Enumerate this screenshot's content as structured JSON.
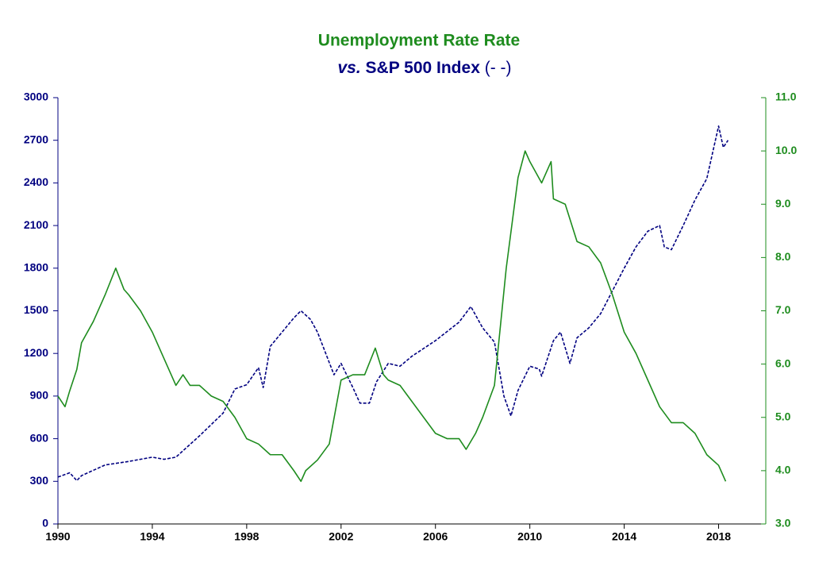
{
  "chart_data": {
    "type": "line",
    "title": "Unemployment Rate Rate",
    "subtitle": [
      "vs.",
      "S&P 500 Index",
      "(- -)"
    ],
    "xlim": [
      1990,
      2020
    ],
    "xticks": [
      1990,
      1994,
      1998,
      2002,
      2006,
      2010,
      2014,
      2018
    ],
    "ylim": [
      0,
      3000
    ],
    "yticks": [
      0,
      300,
      600,
      900,
      1200,
      1500,
      1800,
      2100,
      2400,
      2700,
      3000
    ],
    "y2lim": [
      3,
      11
    ],
    "y2ticks": [
      {
        "value": 3,
        "label": "3.0"
      },
      {
        "value": 4,
        "label": "4.0"
      },
      {
        "value": 5,
        "label": "5.0"
      },
      {
        "value": 6,
        "label": "6.0"
      },
      {
        "value": 7,
        "label": "7.0"
      },
      {
        "value": 8,
        "label": "8.0"
      },
      {
        "value": 9,
        "label": "9.0"
      },
      {
        "value": 10,
        "label": "10.0"
      },
      {
        "value": 11,
        "label": "11.0"
      }
    ],
    "series": [
      {
        "color": "#000080",
        "dashed": true,
        "axis": "y",
        "x": [
          1990.0,
          1990.5,
          1990.8,
          1991.0,
          1992.0,
          1993.0,
          1994.0,
          1994.5,
          1995.0,
          1996.0,
          1997.0,
          1997.5,
          1998.0,
          1998.5,
          1998.7,
          1999.0,
          1999.5,
          2000.0,
          2000.3,
          2000.7,
          2001.0,
          2001.7,
          2002.0,
          2002.5,
          2002.8,
          2003.2,
          2003.5,
          2004.0,
          2004.5,
          2005.0,
          2006.0,
          2007.0,
          2007.5,
          2008.0,
          2008.5,
          2008.9,
          2009.2,
          2009.5,
          2010.0,
          2010.4,
          2010.5,
          2011.0,
          2011.3,
          2011.7,
          2012.0,
          2012.5,
          2013.0,
          2013.5,
          2014.0,
          2014.5,
          2015.0,
          2015.5,
          2015.7,
          2016.0,
          2016.5,
          2017.0,
          2017.5,
          2018.0,
          2018.2,
          2018.4
        ],
        "values": [
          330,
          360,
          305,
          340,
          415,
          440,
          470,
          455,
          470,
          620,
          780,
          950,
          980,
          1100,
          960,
          1250,
          1350,
          1450,
          1500,
          1440,
          1350,
          1050,
          1130,
          960,
          850,
          850,
          1000,
          1130,
          1110,
          1180,
          1290,
          1420,
          1530,
          1380,
          1280,
          900,
          760,
          940,
          1110,
          1090,
          1040,
          1290,
          1350,
          1130,
          1310,
          1380,
          1480,
          1640,
          1800,
          1950,
          2060,
          2100,
          1950,
          1930,
          2100,
          2280,
          2430,
          2800,
          2650,
          2700
        ]
      },
      {
        "color": "#1e8c1e",
        "dashed": false,
        "axis": "y2",
        "x": [
          1990.0,
          1990.3,
          1990.5,
          1990.8,
          1991.0,
          1991.5,
          1992.0,
          1992.45,
          1992.8,
          1993.0,
          1993.5,
          1994.0,
          1994.5,
          1995.0,
          1995.3,
          1995.6,
          1996.0,
          1996.5,
          1997.0,
          1997.5,
          1998.0,
          1998.5,
          1999.0,
          1999.5,
          2000.0,
          2000.3,
          2000.5,
          2001.0,
          2001.5,
          2002.0,
          2002.5,
          2003.0,
          2003.45,
          2003.8,
          2004.0,
          2004.5,
          2005.0,
          2005.5,
          2006.0,
          2006.5,
          2007.0,
          2007.3,
          2007.7,
          2008.0,
          2008.5,
          2009.0,
          2009.5,
          2009.8,
          2010.0,
          2010.5,
          2010.9,
          2011.0,
          2011.5,
          2012.0,
          2012.5,
          2013.0,
          2013.5,
          2014.0,
          2014.5,
          2015.0,
          2015.5,
          2016.0,
          2016.5,
          2017.0,
          2017.5,
          2018.0,
          2018.3
        ],
        "values": [
          5.4,
          5.2,
          5.5,
          5.9,
          6.4,
          6.8,
          7.3,
          7.8,
          7.4,
          7.3,
          7.0,
          6.6,
          6.1,
          5.6,
          5.8,
          5.6,
          5.6,
          5.4,
          5.3,
          5.0,
          4.6,
          4.5,
          4.3,
          4.3,
          4.0,
          3.8,
          4.0,
          4.2,
          4.5,
          5.7,
          5.8,
          5.8,
          6.3,
          5.8,
          5.7,
          5.6,
          5.3,
          5.0,
          4.7,
          4.6,
          4.6,
          4.4,
          4.7,
          5.0,
          5.6,
          7.8,
          9.5,
          10.0,
          9.8,
          9.4,
          9.8,
          9.1,
          9.0,
          8.3,
          8.2,
          7.9,
          7.3,
          6.6,
          6.2,
          5.7,
          5.2,
          4.9,
          4.9,
          4.7,
          4.3,
          4.1,
          3.8
        ]
      }
    ]
  }
}
